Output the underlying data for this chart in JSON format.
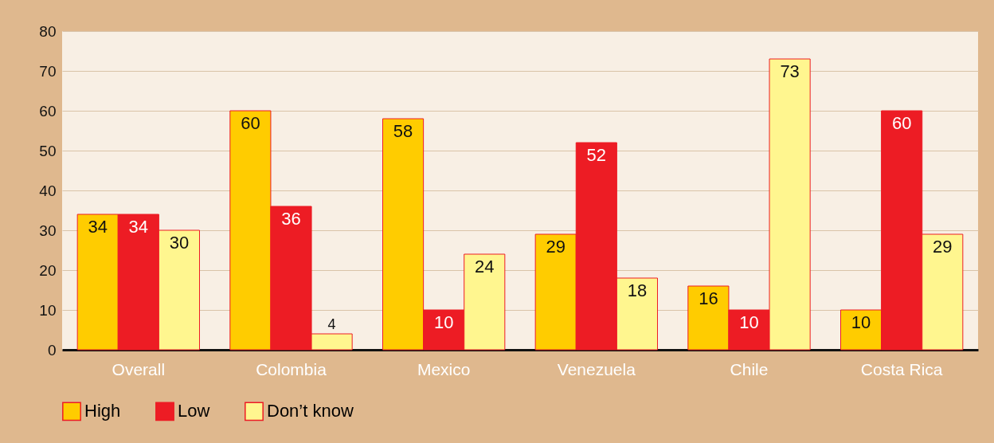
{
  "chart_data": {
    "type": "bar",
    "categories": [
      "Overall",
      "Colombia",
      "Mexico",
      "Venezuela",
      "Chile",
      "Costa Rica"
    ],
    "series": [
      {
        "name": "High",
        "color": "#ffcc00",
        "values": [
          34,
          60,
          58,
          29,
          16,
          10
        ]
      },
      {
        "name": "Low",
        "color": "#ed1c24",
        "values": [
          34,
          36,
          10,
          52,
          10,
          60
        ]
      },
      {
        "name": "Don’t know",
        "color": "#fff68f",
        "values": [
          30,
          4,
          24,
          18,
          73,
          29
        ]
      }
    ],
    "ylim": [
      0,
      80
    ],
    "yticks": [
      0,
      10,
      20,
      30,
      40,
      50,
      60,
      70,
      80
    ],
    "grid": "y",
    "legend": "bottom",
    "data_labels": true
  }
}
